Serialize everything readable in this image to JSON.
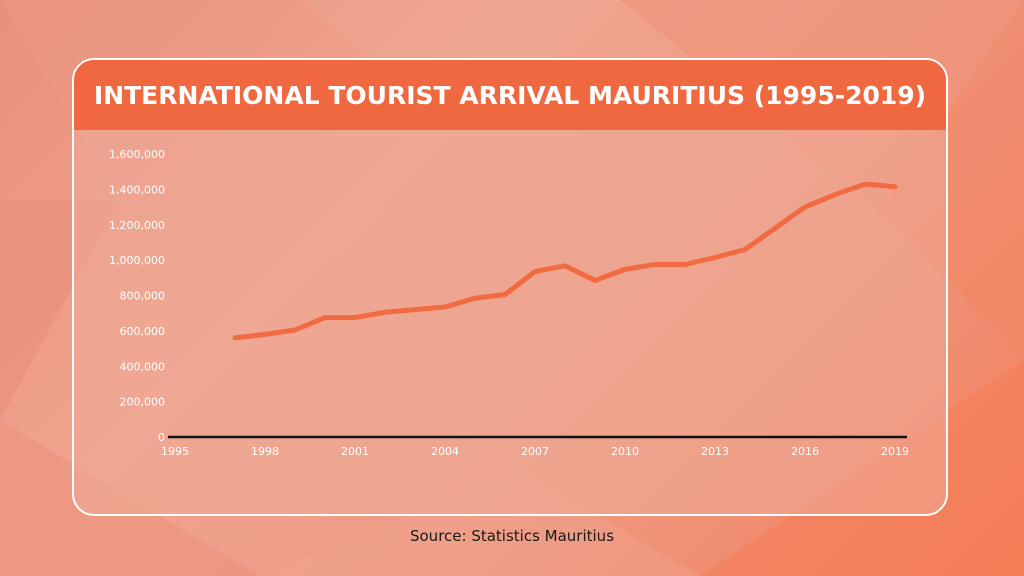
{
  "colors": {
    "accent": "#f0683f",
    "line": "#f06a42",
    "card_border": "#ffffff",
    "label_text": "#ffffff",
    "source_text": "#1a1a1a"
  },
  "source": "Source: Statistics Mauritius",
  "chart_data": {
    "type": "line",
    "title": "INTERNATIONAL TOURIST ARRIVAL MAURITIUS (1995-2019)",
    "xlabel": "",
    "ylabel": "",
    "grid": false,
    "legend": "none",
    "xlim": [
      1995,
      2019
    ],
    "ylim": [
      0,
      1600000
    ],
    "x_ticks": [
      1995,
      1998,
      2001,
      2004,
      2007,
      2010,
      2013,
      2016,
      2019
    ],
    "x_tick_labels": [
      "1995",
      "1998",
      "2001",
      "2004",
      "2007",
      "2010",
      "2013",
      "2016",
      "2019"
    ],
    "y_ticks": [
      0,
      200000,
      400000,
      600000,
      800000,
      1000000,
      1200000,
      1400000,
      1600000
    ],
    "y_tick_labels": [
      "0",
      "200,000",
      "400,000",
      "600,000",
      "800,000",
      "1,000,000",
      "1,200,000",
      "1,400,000",
      "1,600,000"
    ],
    "series": [
      {
        "x": [
          1997,
          1998,
          1999,
          2000,
          2001,
          2002,
          2003,
          2004,
          2005,
          2006,
          2007,
          2008,
          2009,
          2010,
          2011,
          2012,
          2013,
          2014,
          2015,
          2016,
          2017,
          2018,
          2019
        ],
        "values": [
          560000,
          580000,
          605000,
          675000,
          675000,
          705000,
          720000,
          735000,
          785000,
          805000,
          935000,
          968000,
          885000,
          948000,
          975000,
          975000,
          1015000,
          1060000,
          1180000,
          1300000,
          1370000,
          1430000,
          1415000
        ]
      }
    ]
  }
}
